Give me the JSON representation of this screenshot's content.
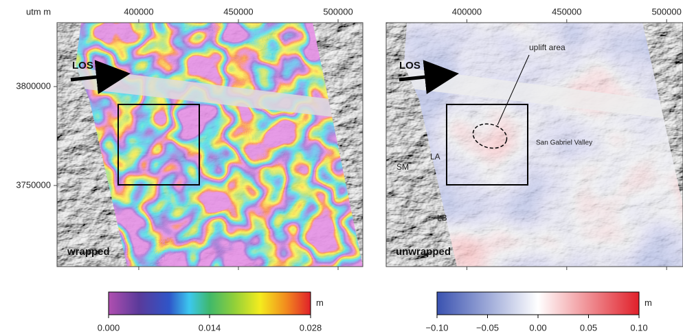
{
  "axis_label": "utm m",
  "panels": [
    {
      "label": "wrapped",
      "los": "LOS",
      "xlim": [
        359000,
        512400
      ],
      "ylim": [
        3709000,
        3832300
      ],
      "xticks": [
        400000,
        450000,
        500000
      ],
      "yticks": [
        3800000,
        3750000
      ],
      "colorbar": {
        "lim": [
          0,
          0.028
        ],
        "unit": "m",
        "ticks": [
          {
            "value": 0,
            "label": "0.000"
          },
          {
            "value": 0.014,
            "label": "0.014"
          },
          {
            "value": 0.028,
            "label": "0.028"
          }
        ]
      }
    },
    {
      "label": "unwrapped",
      "los": "LOS",
      "xlim": [
        359600,
        508200
      ],
      "ylim": [
        3709000,
        3832300
      ],
      "xticks": [
        400000,
        450000,
        500000
      ],
      "annotations": [
        "uplift area",
        "San Gabriel Valley",
        "SM",
        "LA",
        "LB"
      ],
      "colorbar": {
        "lim": [
          -0.1,
          0.1
        ],
        "unit": "m",
        "ticks": [
          {
            "value": -0.1,
            "label": "−0.10"
          },
          {
            "value": -0.05,
            "label": "−0.05"
          },
          {
            "value": 0,
            "label": "0.00"
          },
          {
            "value": 0.05,
            "label": "0.05"
          },
          {
            "value": 0.1,
            "label": "0.10"
          }
        ]
      }
    }
  ]
}
